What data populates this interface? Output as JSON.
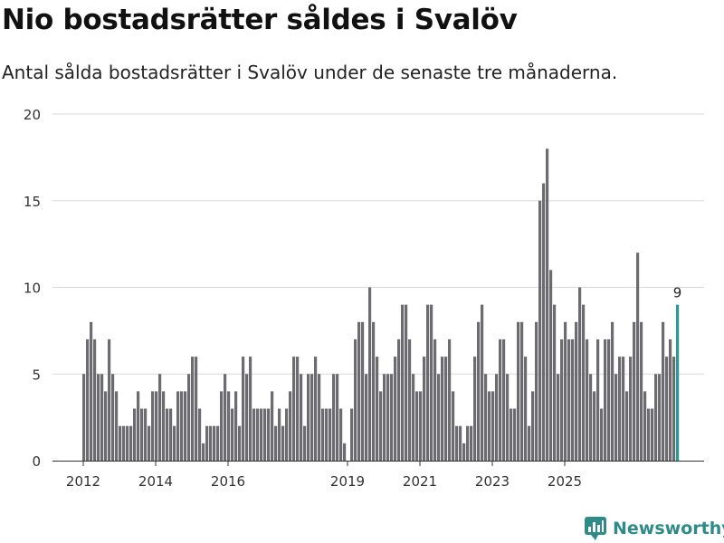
{
  "title": "Nio bostadsrätter såldes i Svalöv",
  "subtitle": "Antal sålda bostadsrätter i Svalöv under de senaste tre månaderna.",
  "brand": {
    "name": "Newsworthy"
  },
  "colors": {
    "bar": "#6c6b70",
    "highlight": "#2a9a94",
    "grid": "#d9d9d9",
    "axis": "#333333",
    "brand": "#2e8b87"
  },
  "chart_data": {
    "type": "bar",
    "title": "Nio bostadsrätter såldes i Svalöv",
    "xlabel": "",
    "ylabel": "",
    "ylim": [
      0,
      20
    ],
    "yticks": [
      0,
      5,
      10,
      15,
      20
    ],
    "xticks": [
      {
        "label": "2012",
        "index": 0
      },
      {
        "label": "2014",
        "index": 20
      },
      {
        "label": "2016",
        "index": 40
      },
      {
        "label": "2019",
        "index": 73
      },
      {
        "label": "2021",
        "index": 93
      },
      {
        "label": "2023",
        "index": 113
      },
      {
        "label": "2025",
        "index": 133
      }
    ],
    "values": [
      5,
      7,
      8,
      7,
      5,
      5,
      4,
      7,
      5,
      4,
      2,
      2,
      2,
      2,
      3,
      4,
      3,
      3,
      2,
      4,
      4,
      5,
      4,
      3,
      3,
      2,
      4,
      4,
      4,
      5,
      6,
      6,
      3,
      1,
      2,
      2,
      2,
      2,
      4,
      5,
      4,
      3,
      4,
      2,
      6,
      5,
      6,
      3,
      3,
      3,
      3,
      3,
      4,
      2,
      3,
      2,
      3,
      4,
      6,
      6,
      5,
      2,
      5,
      5,
      6,
      5,
      3,
      3,
      3,
      5,
      5,
      3,
      1,
      0,
      3,
      7,
      8,
      8,
      5,
      10,
      8,
      6,
      4,
      5,
      5,
      5,
      6,
      7,
      9,
      9,
      7,
      5,
      4,
      4,
      6,
      9,
      9,
      7,
      5,
      6,
      6,
      7,
      4,
      2,
      2,
      1,
      2,
      2,
      6,
      8,
      9,
      5,
      4,
      4,
      5,
      7,
      7,
      5,
      3,
      3,
      8,
      8,
      6,
      2,
      4,
      8,
      15,
      16,
      18,
      11,
      9,
      5,
      7,
      8,
      7,
      7,
      8,
      10,
      9,
      7,
      5,
      4,
      7,
      3,
      7,
      7,
      8,
      5,
      6,
      6,
      4,
      6,
      8,
      12,
      8,
      4,
      3,
      3,
      5,
      5,
      8,
      6,
      7,
      6,
      9
    ],
    "highlight_last": true,
    "annotations": [
      {
        "index": 164,
        "text": "9"
      }
    ]
  }
}
